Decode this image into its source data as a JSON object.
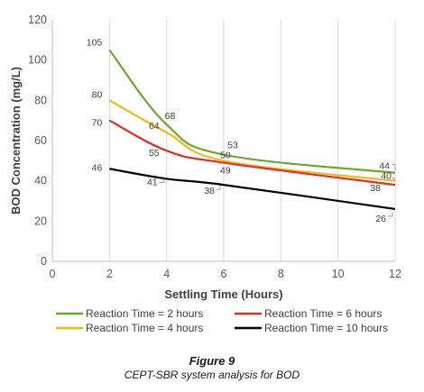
{
  "figure": {
    "title": "Figure 9",
    "caption": "CEPT-SBR system analysis for BOD"
  },
  "chart_data": {
    "type": "line",
    "xlabel": "Settling Time (Hours)",
    "ylabel": "BOD Concentration (mg/L)",
    "xlim": [
      0,
      12
    ],
    "ylim": [
      0,
      120
    ],
    "x_ticks": [
      0,
      2,
      4,
      6,
      8,
      10,
      12
    ],
    "y_ticks": [
      0,
      20,
      40,
      60,
      80,
      100,
      120
    ],
    "grid": "vertical",
    "legend_position": "bottom",
    "series": [
      {
        "name": "Reaction Time = 2 hours",
        "color": "#70a532",
        "points": [
          [
            2,
            105
          ],
          [
            4,
            68
          ],
          [
            6,
            53
          ],
          [
            12,
            44
          ]
        ],
        "labels": [
          "105",
          "68",
          "53",
          "44"
        ]
      },
      {
        "name": "Reaction Time = 4 hours",
        "color": "#f2b824",
        "points": [
          [
            2,
            80
          ],
          [
            4,
            64
          ],
          [
            6,
            50
          ],
          [
            12,
            40
          ]
        ],
        "labels": [
          "80",
          "64",
          "50",
          "40"
        ]
      },
      {
        "name": "Reaction Time = 6 hours",
        "color": "#d6312a",
        "points": [
          [
            2,
            70
          ],
          [
            4,
            55
          ],
          [
            6,
            49
          ],
          [
            12,
            38
          ]
        ],
        "labels": [
          "70",
          "55",
          "49",
          "38"
        ]
      },
      {
        "name": "Reaction Time = 10 hours",
        "color": "#000000",
        "points": [
          [
            2,
            46
          ],
          [
            4,
            41
          ],
          [
            6,
            38
          ],
          [
            12,
            26
          ]
        ],
        "labels": [
          "46",
          "41",
          "38",
          "26"
        ]
      }
    ]
  }
}
